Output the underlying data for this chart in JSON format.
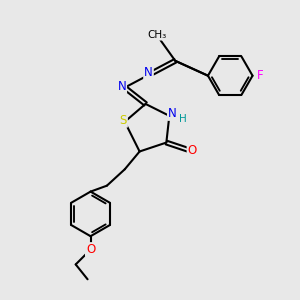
{
  "bg_color": "#e8e8e8",
  "bond_color": "#000000",
  "bond_width": 1.5,
  "atom_colors": {
    "S": "#cccc00",
    "N": "#0000ee",
    "O": "#ff0000",
    "F": "#ff00ff",
    "H": "#009999",
    "C": "#000000"
  },
  "font_size": 8.5
}
